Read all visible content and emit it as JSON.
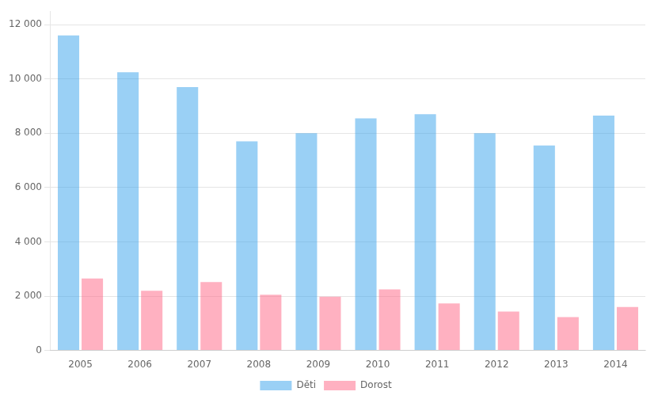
{
  "chart_data": {
    "type": "bar",
    "categories": [
      "2005",
      "2006",
      "2007",
      "2008",
      "2009",
      "2010",
      "2011",
      "2012",
      "2013",
      "2014"
    ],
    "series": [
      {
        "name": "Děti",
        "values": [
          11600,
          10250,
          9700,
          7700,
          8000,
          8550,
          8700,
          8000,
          7550,
          8650
        ]
      },
      {
        "name": "Dorost",
        "values": [
          2650,
          2200,
          2520,
          2050,
          1980,
          2250,
          1730,
          1430,
          1230,
          1600
        ]
      }
    ],
    "ylim": [
      0,
      12500
    ],
    "yticks": [
      0,
      {
        "value": 2000,
        "label": "2 000"
      },
      {
        "value": 4000,
        "label": "4 000"
      },
      {
        "value": 6000,
        "label": "6 000"
      },
      {
        "value": 8000,
        "label": "8 000"
      },
      {
        "value": 10000,
        "label": "10 000"
      },
      {
        "value": 12000,
        "label": "12 000"
      }
    ],
    "grid": true,
    "legend": "bottom"
  }
}
